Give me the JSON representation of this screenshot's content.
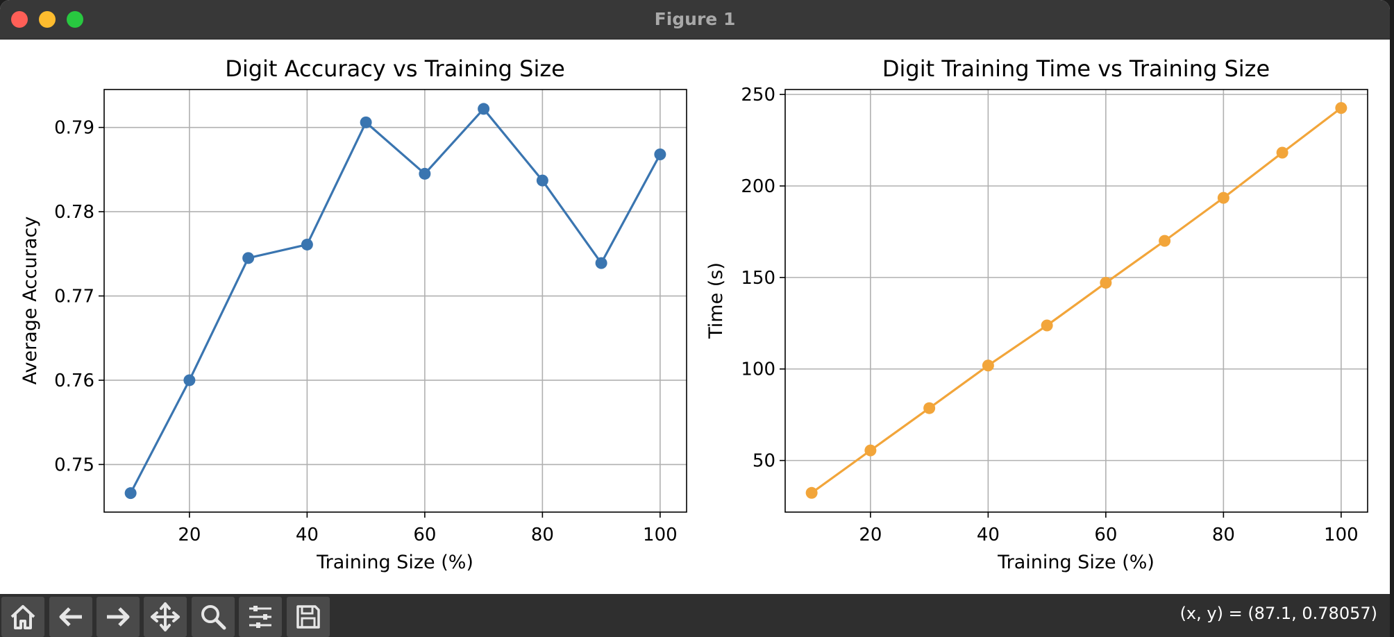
{
  "window": {
    "title": "Figure 1",
    "close_color": "#ff5f57",
    "minimize_color": "#febc2e",
    "zoom_color": "#28c840"
  },
  "toolbar": {
    "buttons": [
      {
        "name": "home",
        "icon": "home-icon"
      },
      {
        "name": "back",
        "icon": "arrow-left-icon"
      },
      {
        "name": "forward",
        "icon": "arrow-right-icon"
      },
      {
        "name": "pan",
        "icon": "move-icon"
      },
      {
        "name": "zoom",
        "icon": "magnifier-icon"
      },
      {
        "name": "configure",
        "icon": "sliders-icon"
      },
      {
        "name": "save",
        "icon": "floppy-disk-icon"
      }
    ],
    "coord_readout": "(x, y) = (87.1, 0.78057)"
  },
  "chart_data": [
    {
      "type": "line",
      "title": "Digit Accuracy vs Training Size",
      "xlabel": "Training Size (%)",
      "ylabel": "Average Accuracy",
      "x": [
        10,
        20,
        30,
        40,
        50,
        60,
        70,
        80,
        90,
        100
      ],
      "series": [
        {
          "values": [
            0.7466,
            0.76,
            0.7745,
            0.7761,
            0.7906,
            0.7845,
            0.7922,
            0.7837,
            0.7739,
            0.7868
          ],
          "color": "#3a75b0"
        }
      ],
      "xticks": [
        20,
        40,
        60,
        80,
        100
      ],
      "yticks": [
        0.75,
        0.76,
        0.77,
        0.78,
        0.79
      ],
      "ytick_labels": [
        "0.75",
        "0.76",
        "0.77",
        "0.78",
        "0.79"
      ],
      "xlim": [
        5.5,
        104.5
      ],
      "ylim": [
        0.74435,
        0.7945
      ],
      "grid": true,
      "marker": "circle"
    },
    {
      "type": "line",
      "title": "Digit Training Time vs Training Size",
      "xlabel": "Training Size (%)",
      "ylabel": "Time (s)",
      "x": [
        10,
        20,
        30,
        40,
        50,
        60,
        70,
        80,
        90,
        100
      ],
      "series": [
        {
          "values": [
            32.3,
            55.5,
            78.6,
            101.9,
            123.8,
            147.1,
            170.0,
            193.5,
            218.2,
            242.6
          ],
          "color": "#f2a53a"
        }
      ],
      "xticks": [
        20,
        40,
        60,
        80,
        100
      ],
      "yticks": [
        50,
        100,
        150,
        200,
        250
      ],
      "ytick_labels": [
        "50",
        "100",
        "150",
        "200",
        "250"
      ],
      "xlim": [
        5.5,
        104.5
      ],
      "ylim": [
        21.8,
        252.7
      ],
      "grid": true,
      "marker": "circle"
    }
  ]
}
